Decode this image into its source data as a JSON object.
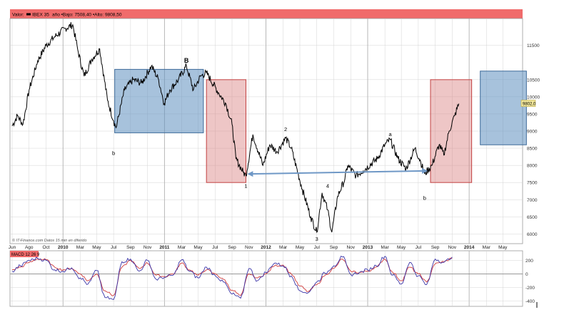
{
  "header": {
    "label": "Valor:",
    "ticker": "IBEX 35",
    "stats": "año •Bajo: 7508,40 •Alto: 9808,50"
  },
  "footer": {
    "source": "© IT-Finance.com  Datos 15 min en diferido"
  },
  "macd": {
    "label": "MACD 12 26 9",
    "y_ticks": [
      200,
      0,
      -200,
      -400
    ],
    "ylim": [
      -460,
      300
    ]
  },
  "colors": {
    "header_bar": "#f06b6b",
    "price_line": "#000000",
    "blue_box_fill": "#5f8fbf",
    "blue_box_stroke": "#3d6a99",
    "red_box_fill": "#d98080",
    "red_box_stroke": "#c24040",
    "arrow": "#6f98c6",
    "macd_line": "#3a34a8",
    "signal_line": "#d03a3a",
    "grid": "#d4d4d4",
    "last_price_bg": "#f2e79a"
  },
  "chart_data": {
    "type": "line",
    "y_ticks": [
      6000,
      6500,
      7000,
      7500,
      8000,
      8500,
      9000,
      9500,
      10000,
      10500,
      11500
    ],
    "ylim": [
      5800,
      12200
    ],
    "x_labels": [
      "Jun",
      "Ago",
      "Oct",
      "2010",
      "Mar",
      "May",
      "Jul",
      "Sep",
      "Nov",
      "2011",
      "Mar",
      "May",
      "Jul",
      "Sep",
      "Nov",
      "2012",
      "Mar",
      "May",
      "Jul",
      "Sep",
      "Nov",
      "2013",
      "Mar",
      "May",
      "Jul",
      "Sep",
      "Nov",
      "2014",
      "Mar",
      "May"
    ],
    "grid": true,
    "last_price": "9802,0",
    "series": [
      {
        "values": [
          {
            "x": "2009-06-01",
            "y": 9150
          },
          {
            "x": "2009-06-20",
            "y": 9450
          },
          {
            "x": "2009-07-10",
            "y": 9200
          },
          {
            "x": "2009-08-01",
            "y": 10200
          },
          {
            "x": "2009-09-01",
            "y": 11050
          },
          {
            "x": "2009-10-01",
            "y": 11500
          },
          {
            "x": "2009-11-01",
            "y": 11750
          },
          {
            "x": "2009-12-10",
            "y": 12000
          },
          {
            "x": "2010-01-05",
            "y": 12100
          },
          {
            "x": "2010-01-25",
            "y": 11300
          },
          {
            "x": "2010-02-15",
            "y": 10600
          },
          {
            "x": "2010-03-15",
            "y": 11100
          },
          {
            "x": "2010-04-12",
            "y": 11400
          },
          {
            "x": "2010-05-10",
            "y": 9900
          },
          {
            "x": "2010-06-01",
            "y": 9300
          },
          {
            "x": "2010-06-10",
            "y": 9100
          },
          {
            "x": "2010-07-10",
            "y": 10200
          },
          {
            "x": "2010-08-10",
            "y": 10500
          },
          {
            "x": "2010-09-10",
            "y": 10400
          },
          {
            "x": "2010-10-15",
            "y": 10900
          },
          {
            "x": "2010-11-10",
            "y": 10500
          },
          {
            "x": "2010-11-30",
            "y": 9800
          },
          {
            "x": "2010-12-20",
            "y": 10200
          },
          {
            "x": "2011-01-20",
            "y": 10500
          },
          {
            "x": "2011-02-18",
            "y": 10900
          },
          {
            "x": "2011-03-15",
            "y": 10200
          },
          {
            "x": "2011-04-10",
            "y": 10600
          },
          {
            "x": "2011-05-01",
            "y": 10700
          },
          {
            "x": "2011-06-15",
            "y": 10100
          },
          {
            "x": "2011-07-10",
            "y": 9800
          },
          {
            "x": "2011-08-01",
            "y": 9200
          },
          {
            "x": "2011-08-15",
            "y": 8200
          },
          {
            "x": "2011-09-10",
            "y": 7800
          },
          {
            "x": "2011-09-20",
            "y": 7700
          },
          {
            "x": "2011-10-15",
            "y": 8900
          },
          {
            "x": "2011-11-20",
            "y": 8000
          },
          {
            "x": "2011-12-15",
            "y": 8600
          },
          {
            "x": "2012-01-10",
            "y": 8400
          },
          {
            "x": "2012-02-10",
            "y": 8800
          },
          {
            "x": "2012-03-01",
            "y": 8500
          },
          {
            "x": "2012-04-10",
            "y": 7300
          },
          {
            "x": "2012-05-10",
            "y": 6500
          },
          {
            "x": "2012-06-01",
            "y": 6050
          },
          {
            "x": "2012-06-20",
            "y": 7200
          },
          {
            "x": "2012-07-10",
            "y": 6700
          },
          {
            "x": "2012-07-25",
            "y": 6050
          },
          {
            "x": "2012-08-15",
            "y": 7100
          },
          {
            "x": "2012-09-10",
            "y": 7600
          },
          {
            "x": "2012-09-20",
            "y": 8000
          },
          {
            "x": "2012-10-20",
            "y": 7700
          },
          {
            "x": "2012-11-15",
            "y": 7850
          },
          {
            "x": "2013-01-05",
            "y": 8200
          },
          {
            "x": "2013-02-01",
            "y": 8600
          },
          {
            "x": "2013-02-20",
            "y": 8750
          },
          {
            "x": "2013-03-20",
            "y": 8200
          },
          {
            "x": "2013-04-18",
            "y": 7900
          },
          {
            "x": "2013-05-20",
            "y": 8500
          },
          {
            "x": "2013-06-10",
            "y": 8100
          },
          {
            "x": "2013-06-24",
            "y": 7750
          },
          {
            "x": "2013-07-20",
            "y": 8000
          },
          {
            "x": "2013-08-15",
            "y": 8600
          },
          {
            "x": "2013-09-01",
            "y": 8300
          },
          {
            "x": "2013-09-20",
            "y": 9000
          },
          {
            "x": "2013-10-10",
            "y": 9450
          },
          {
            "x": "2013-10-25",
            "y": 9800
          }
        ]
      }
    ],
    "annotations": [
      {
        "text": "B",
        "x": "2011-02-18",
        "y": 11000
      },
      {
        "text": "b",
        "x": "2010-06-01",
        "y": 8300
      },
      {
        "text": "1",
        "x": "2011-09-20",
        "y": 7350
      },
      {
        "text": "2",
        "x": "2012-02-10",
        "y": 9000
      },
      {
        "text": "3",
        "x": "2012-06-01",
        "y": 5800
      },
      {
        "text": "4",
        "x": "2012-07-10",
        "y": 7350
      },
      {
        "text": "a",
        "x": "2013-02-20",
        "y": 8850
      },
      {
        "text": "b",
        "x": "2013-06-24",
        "y": 7000
      }
    ],
    "macd_series": {
      "x": [
        "2009-06-01",
        "2009-07-01",
        "2009-08-01",
        "2009-09-01",
        "2009-10-01",
        "2009-11-01",
        "2009-12-01",
        "2010-01-01",
        "2010-02-01",
        "2010-03-01",
        "2010-04-01",
        "2010-05-01",
        "2010-06-01",
        "2010-07-01",
        "2010-08-01",
        "2010-09-01",
        "2010-10-01",
        "2010-11-01",
        "2010-12-01",
        "2011-01-01",
        "2011-02-01",
        "2011-03-01",
        "2011-04-01",
        "2011-05-01",
        "2011-06-01",
        "2011-07-01",
        "2011-08-01",
        "2011-09-01",
        "2011-10-01",
        "2011-11-01",
        "2011-12-01",
        "2012-01-01",
        "2012-02-01",
        "2012-03-01",
        "2012-04-01",
        "2012-05-01",
        "2012-06-01",
        "2012-07-01",
        "2012-08-01",
        "2012-09-01",
        "2012-10-01",
        "2012-11-01",
        "2012-12-01",
        "2013-01-01",
        "2013-02-01",
        "2013-03-01",
        "2013-04-01",
        "2013-05-01",
        "2013-06-01",
        "2013-07-01",
        "2013-08-01",
        "2013-09-01",
        "2013-10-01"
      ],
      "macd": [
        40,
        120,
        200,
        230,
        200,
        60,
        40,
        90,
        -60,
        -150,
        50,
        -350,
        -380,
        180,
        220,
        40,
        200,
        -80,
        -50,
        -20,
        210,
        40,
        -60,
        100,
        -20,
        -120,
        -300,
        -360,
        80,
        -100,
        20,
        160,
        120,
        -30,
        -250,
        -280,
        -120,
        10,
        120,
        250,
        -10,
        20,
        60,
        120,
        260,
        -20,
        -150,
        170,
        -30,
        -160,
        220,
        170,
        250
      ],
      "signal": [
        60,
        100,
        170,
        220,
        210,
        100,
        60,
        80,
        0,
        -100,
        0,
        -250,
        -320,
        100,
        200,
        80,
        160,
        -20,
        -40,
        0,
        160,
        60,
        -20,
        60,
        0,
        -80,
        -240,
        -320,
        0,
        -60,
        0,
        120,
        130,
        0,
        -180,
        -260,
        -160,
        -20,
        80,
        220,
        40,
        20,
        40,
        100,
        220,
        20,
        -100,
        100,
        0,
        -120,
        150,
        180,
        230
      ]
    }
  }
}
